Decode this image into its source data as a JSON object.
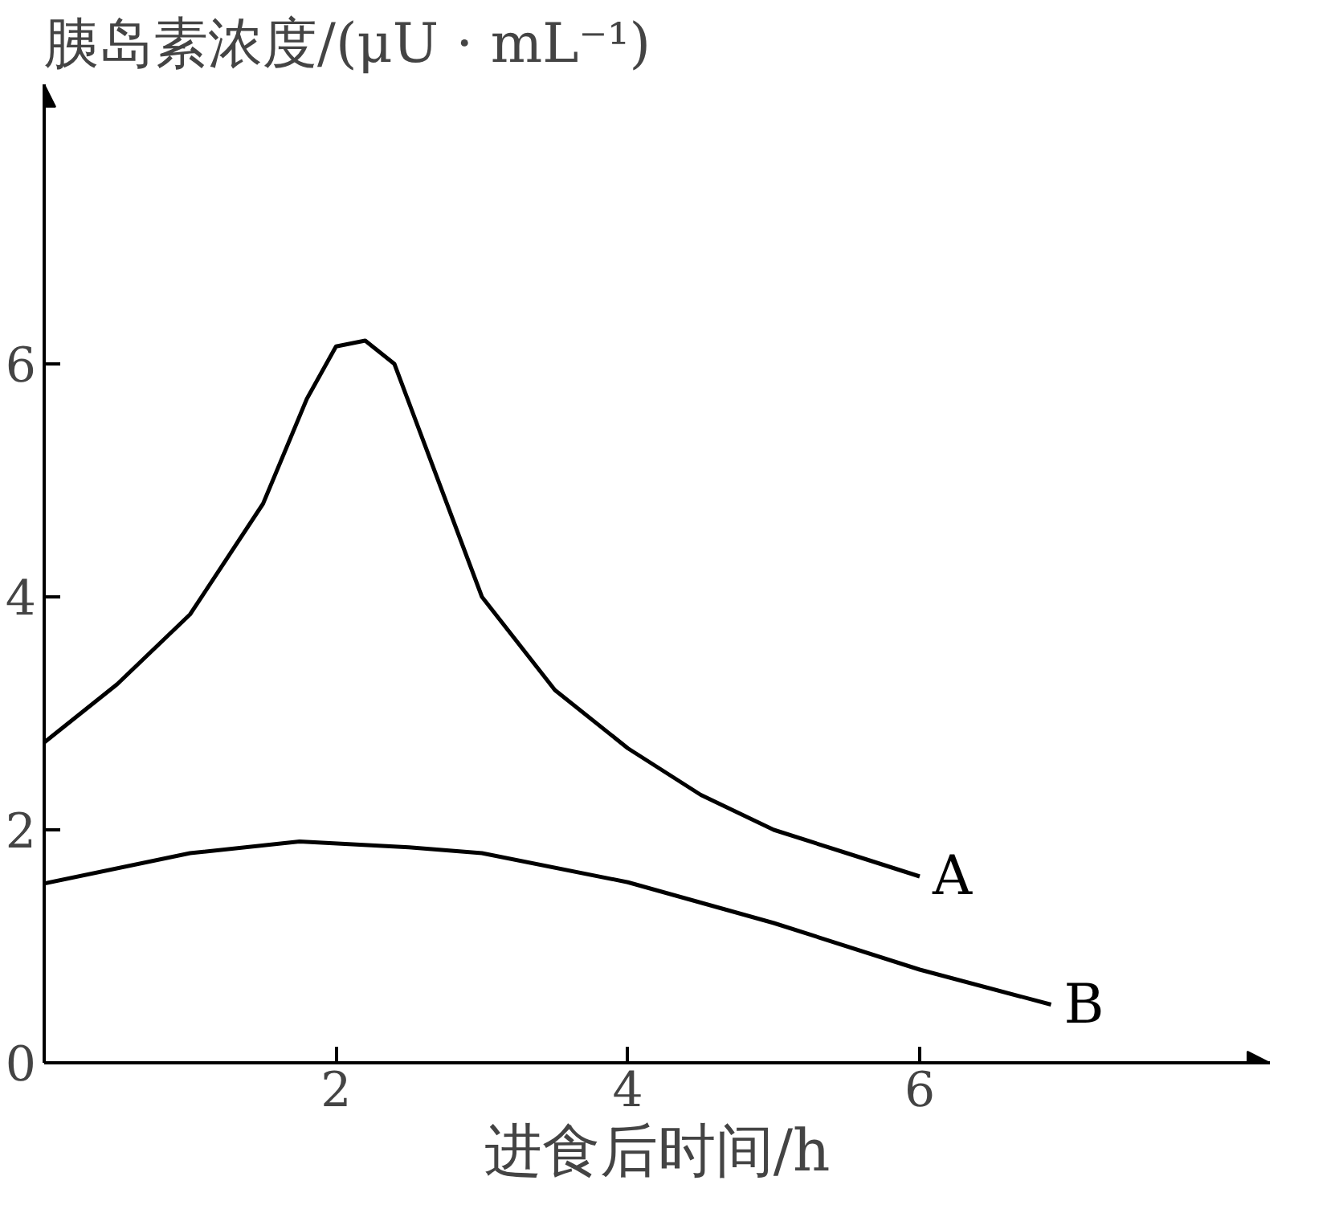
{
  "chart_data": {
    "type": "line",
    "ylabel": "胰岛素浓度/(μU · mL⁻¹)",
    "xlabel": "进食后时间/h",
    "xlim": [
      0,
      8.4
    ],
    "ylim": [
      0,
      8.4
    ],
    "xticks": [
      2,
      4,
      6
    ],
    "yticks": [
      0,
      2,
      4,
      6
    ],
    "grid": false,
    "marker": "none",
    "line_style": "solid",
    "series": [
      {
        "name": "A",
        "color": "#000000",
        "x": [
          0,
          0.5,
          1,
          1.5,
          1.8,
          2.0,
          2.2,
          2.4,
          2.7,
          3,
          3.5,
          4,
          4.5,
          5,
          5.5,
          6
        ],
        "values": [
          2.75,
          3.25,
          3.85,
          4.8,
          5.7,
          6.15,
          6.2,
          6.0,
          5.0,
          4.0,
          3.2,
          2.7,
          2.3,
          2.0,
          1.8,
          1.6
        ]
      },
      {
        "name": "B",
        "color": "#000000",
        "x": [
          0,
          1,
          1.75,
          2.5,
          3,
          4,
          5,
          6,
          6.9
        ],
        "values": [
          1.54,
          1.8,
          1.9,
          1.85,
          1.8,
          1.55,
          1.2,
          0.8,
          0.5
        ]
      }
    ]
  }
}
